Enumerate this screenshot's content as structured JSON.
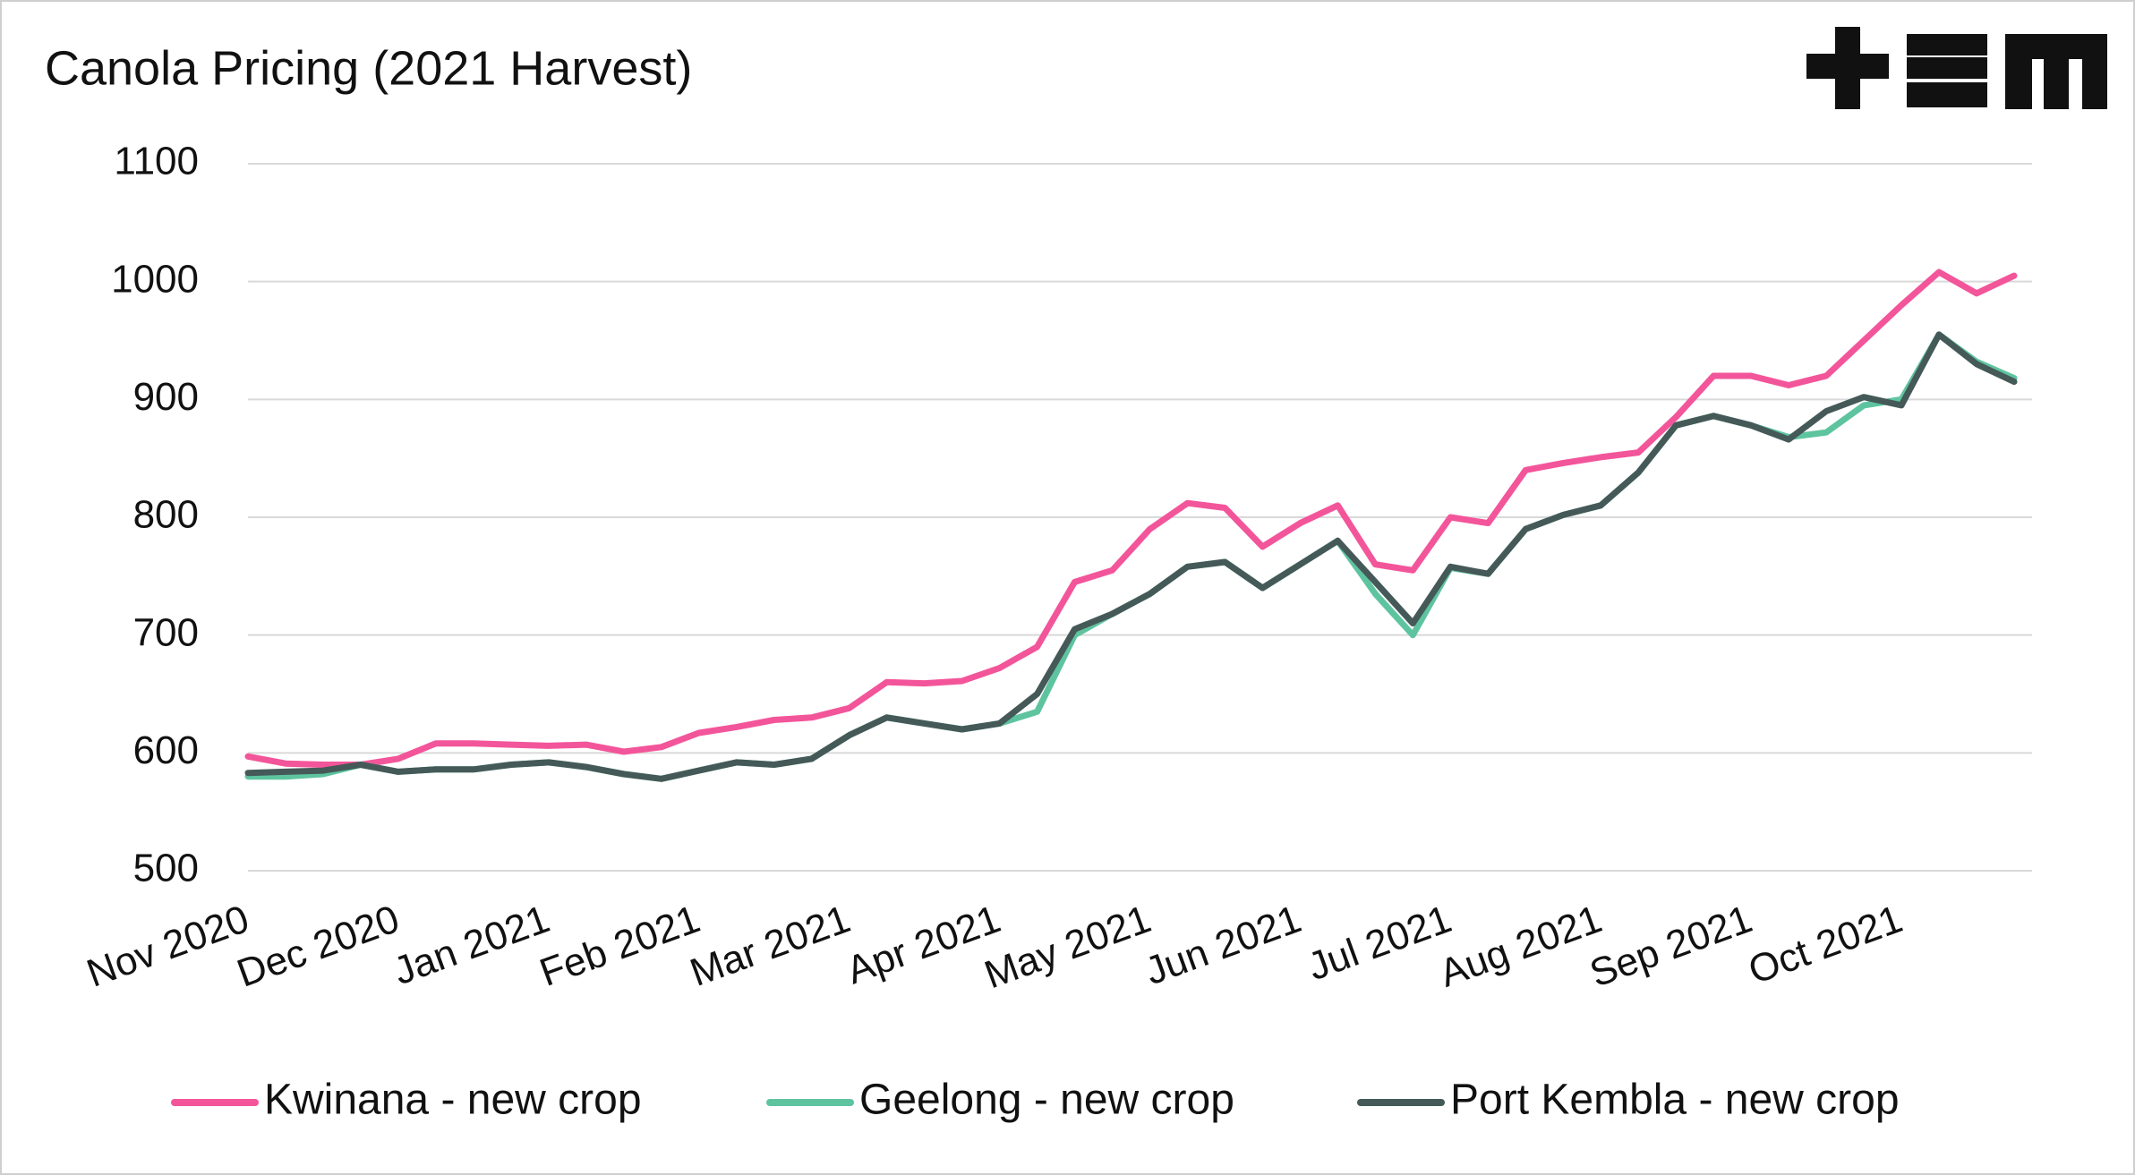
{
  "chart_data": {
    "type": "line",
    "title": "Canola Pricing (2021 Harvest)",
    "categories": [
      "Nov 2020",
      null,
      null,
      null,
      "Dec 2020",
      null,
      null,
      null,
      "Jan 2021",
      null,
      null,
      null,
      "Feb 2021",
      null,
      null,
      null,
      "Mar 2021",
      null,
      null,
      null,
      "Apr 2021",
      null,
      null,
      null,
      "May 2021",
      null,
      null,
      null,
      "Jun 2021",
      null,
      null,
      null,
      "Jul 2021",
      null,
      null,
      null,
      "Aug 2021",
      null,
      null,
      null,
      "Sep 2021",
      null,
      null,
      null,
      "Oct 2021",
      null,
      null,
      null
    ],
    "series": [
      {
        "name": "Kwinana - new crop",
        "color": "#f3559a",
        "values": [
          597,
          591,
          590,
          590,
          595,
          608,
          608,
          607,
          606,
          607,
          601,
          605,
          617,
          622,
          628,
          630,
          638,
          660,
          659,
          661,
          672,
          690,
          745,
          755,
          790,
          812,
          808,
          775,
          795,
          810,
          760,
          755,
          800,
          795,
          840,
          846,
          851,
          855,
          885,
          920,
          920,
          912,
          920,
          950,
          980,
          1008,
          990,
          1005
        ]
      },
      {
        "name": "Geelong - new crop",
        "color": "#5ec4a0",
        "values": [
          580,
          580,
          582,
          590,
          584,
          586,
          586,
          590,
          592,
          588,
          582,
          578,
          585,
          592,
          590,
          595,
          615,
          630,
          625,
          620,
          625,
          635,
          700,
          718,
          735,
          758,
          762,
          740,
          760,
          780,
          735,
          700,
          757,
          752,
          790,
          802,
          810,
          838,
          878,
          886,
          878,
          868,
          872,
          895,
          900,
          955,
          932,
          918
        ]
      },
      {
        "name": "Port Kembla - new crop",
        "color": "#455a58",
        "values": [
          583,
          584,
          585,
          590,
          584,
          586,
          586,
          590,
          592,
          588,
          582,
          578,
          585,
          592,
          590,
          595,
          615,
          630,
          625,
          620,
          625,
          650,
          705,
          718,
          735,
          758,
          762,
          740,
          760,
          780,
          745,
          710,
          758,
          752,
          790,
          802,
          810,
          838,
          878,
          886,
          878,
          866,
          890,
          902,
          895,
          955,
          930,
          915
        ]
      }
    ],
    "ylim": [
      500,
      1100
    ],
    "yticks": [
      500,
      600,
      700,
      800,
      900,
      1000,
      1100
    ],
    "grid": true,
    "legend": "bottom"
  }
}
